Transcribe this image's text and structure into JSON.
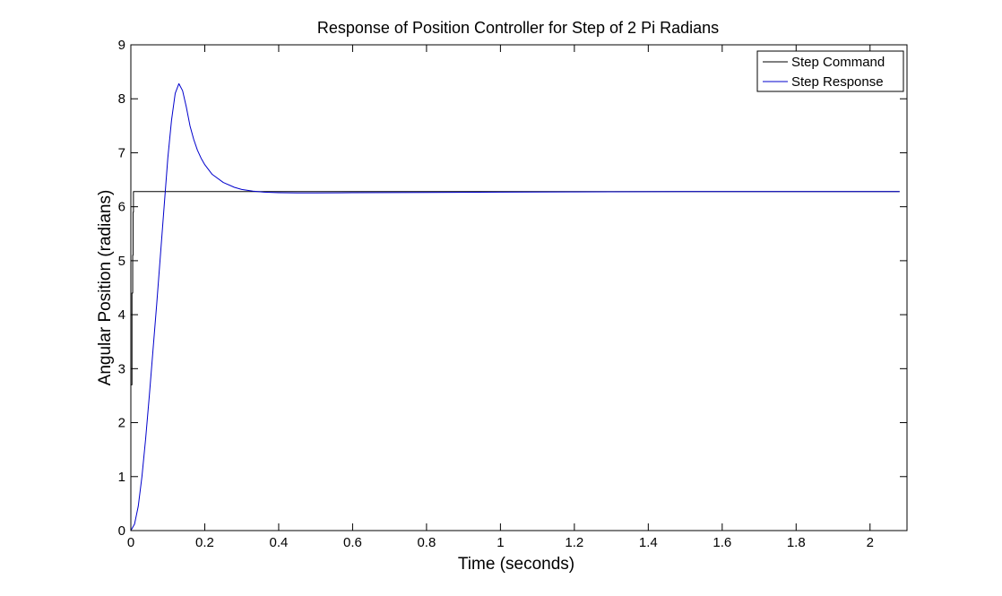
{
  "chart_data": {
    "type": "line",
    "title": "Response of Position Controller for Step of 2 Pi Radians",
    "xlabel": "Time (seconds)",
    "ylabel": "Angular Position (radians)",
    "xlim": [
      0,
      2.1
    ],
    "ylim": [
      0,
      9
    ],
    "xticks": [
      "0",
      "0.2",
      "0.4",
      "0.6",
      "0.8",
      "1",
      "1.2",
      "1.4",
      "1.6",
      "1.8",
      "2"
    ],
    "yticks": [
      "0",
      "1",
      "2",
      "3",
      "4",
      "5",
      "6",
      "7",
      "8",
      "9"
    ],
    "grid": false,
    "legend_position": "top-right",
    "series": [
      {
        "name": "Step Command",
        "color": "#000000",
        "x": [
          0,
          0.003,
          0.003,
          0.005,
          0.005,
          0.006,
          0.006,
          0.007,
          0.007,
          0.008,
          2.08
        ],
        "y": [
          2.7,
          2.7,
          4.4,
          4.4,
          5.1,
          5.1,
          5.9,
          5.9,
          6.28,
          6.28,
          6.28
        ]
      },
      {
        "name": "Step Response",
        "color": "#0000cc",
        "x": [
          0,
          0.01,
          0.02,
          0.03,
          0.04,
          0.05,
          0.06,
          0.07,
          0.08,
          0.09,
          0.1,
          0.11,
          0.12,
          0.13,
          0.14,
          0.15,
          0.16,
          0.17,
          0.18,
          0.19,
          0.2,
          0.22,
          0.25,
          0.28,
          0.3,
          0.33,
          0.36,
          0.4,
          0.45,
          0.5,
          0.6,
          0.8,
          1.0,
          1.2,
          1.5,
          1.8,
          2.08
        ],
        "y": [
          0,
          0.12,
          0.45,
          1.0,
          1.7,
          2.5,
          3.35,
          4.2,
          5.1,
          6.0,
          6.9,
          7.6,
          8.1,
          8.28,
          8.15,
          7.85,
          7.5,
          7.25,
          7.05,
          6.9,
          6.78,
          6.6,
          6.45,
          6.36,
          6.32,
          6.29,
          6.27,
          6.26,
          6.255,
          6.255,
          6.26,
          6.265,
          6.27,
          6.275,
          6.28,
          6.28,
          6.28
        ]
      }
    ]
  }
}
